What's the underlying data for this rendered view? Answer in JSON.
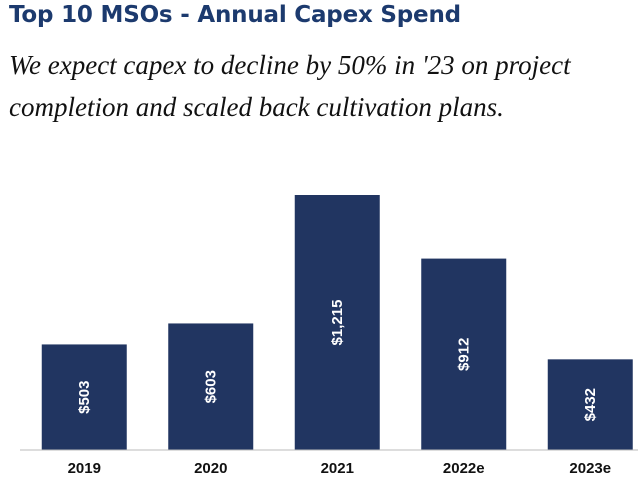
{
  "header": {
    "title": "Top 10 MSOs - Annual Capex Spend",
    "subtitle": "We expect capex to decline by 50% in '23 on project completion and scaled back cultivation plans."
  },
  "colors": {
    "title": "#1c3a6e",
    "bar": "#213561",
    "axis": "#bbbbbb"
  },
  "chart_data": {
    "type": "bar",
    "title": "Top 10 MSOs - Annual Capex Spend",
    "categories": [
      "2019",
      "2020",
      "2021",
      "2022e",
      "2023e"
    ],
    "values": [
      503,
      603,
      1215,
      912,
      432
    ],
    "data_labels": [
      "$503",
      "$603",
      "$1,215",
      "$912",
      "$432"
    ],
    "xlabel": "",
    "ylabel": "",
    "ylim": [
      0,
      1215
    ],
    "grid": false,
    "legend": "none"
  }
}
